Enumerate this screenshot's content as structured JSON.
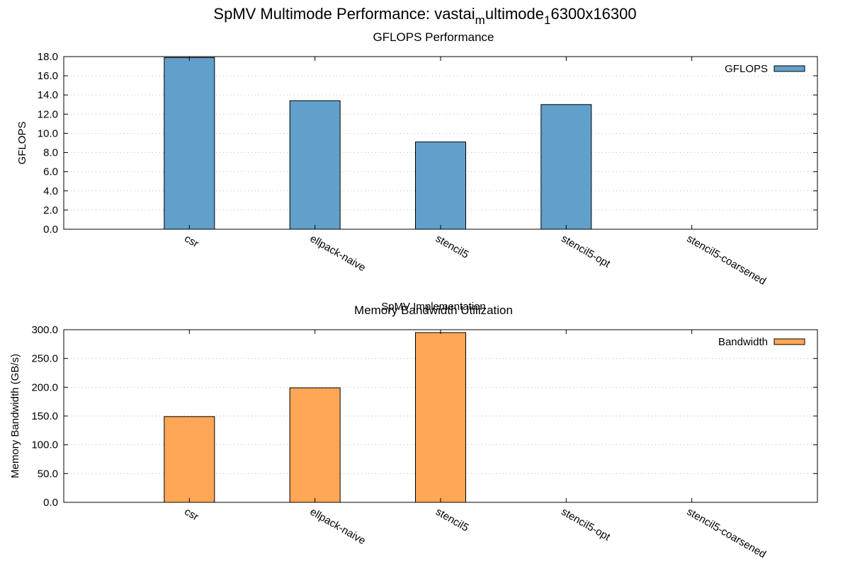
{
  "figure": {
    "title_main": "SpMV Multimode Performance: vastai",
    "title_sub1": "m",
    "title_mid": "ultimode",
    "title_sub2": "1",
    "title_end": "6300x16300"
  },
  "chart_data": [
    {
      "type": "bar",
      "title": "GFLOPS Performance",
      "xlabel": "SpMV Implementation",
      "ylabel": "GFLOPS",
      "ylim": [
        0,
        18
      ],
      "y_ticks": [
        "0.0",
        "2.0",
        "4.0",
        "6.0",
        "8.0",
        "10.0",
        "12.0",
        "14.0",
        "16.0",
        "18.0"
      ],
      "categories": [
        "csr",
        "ellpack-naive",
        "stencil5",
        "stencil5-opt",
        "stencil5-coarsened"
      ],
      "series": [
        {
          "name": "GFLOPS",
          "color": "#62a0cc",
          "values": [
            17.9,
            13.4,
            9.1,
            13.0,
            null
          ]
        }
      ],
      "grid": "horizontal-dotted",
      "legend": "top-right"
    },
    {
      "type": "bar",
      "title": "Memory Bandwidth Utilization",
      "xlabel": "",
      "ylabel": "Memory Bandwidth (GB/s)",
      "ylim": [
        0,
        300
      ],
      "y_ticks": [
        "0.0",
        "50.0",
        "100.0",
        "150.0",
        "200.0",
        "250.0",
        "300.0"
      ],
      "categories": [
        "csr",
        "ellpack-naive",
        "stencil5",
        "stencil5-opt",
        "stencil5-coarsened"
      ],
      "series": [
        {
          "name": "Bandwidth",
          "color": "#ffa756",
          "values": [
            149,
            199,
            295,
            null,
            null
          ]
        }
      ],
      "grid": "horizontal-dotted",
      "legend": "top-right"
    }
  ]
}
